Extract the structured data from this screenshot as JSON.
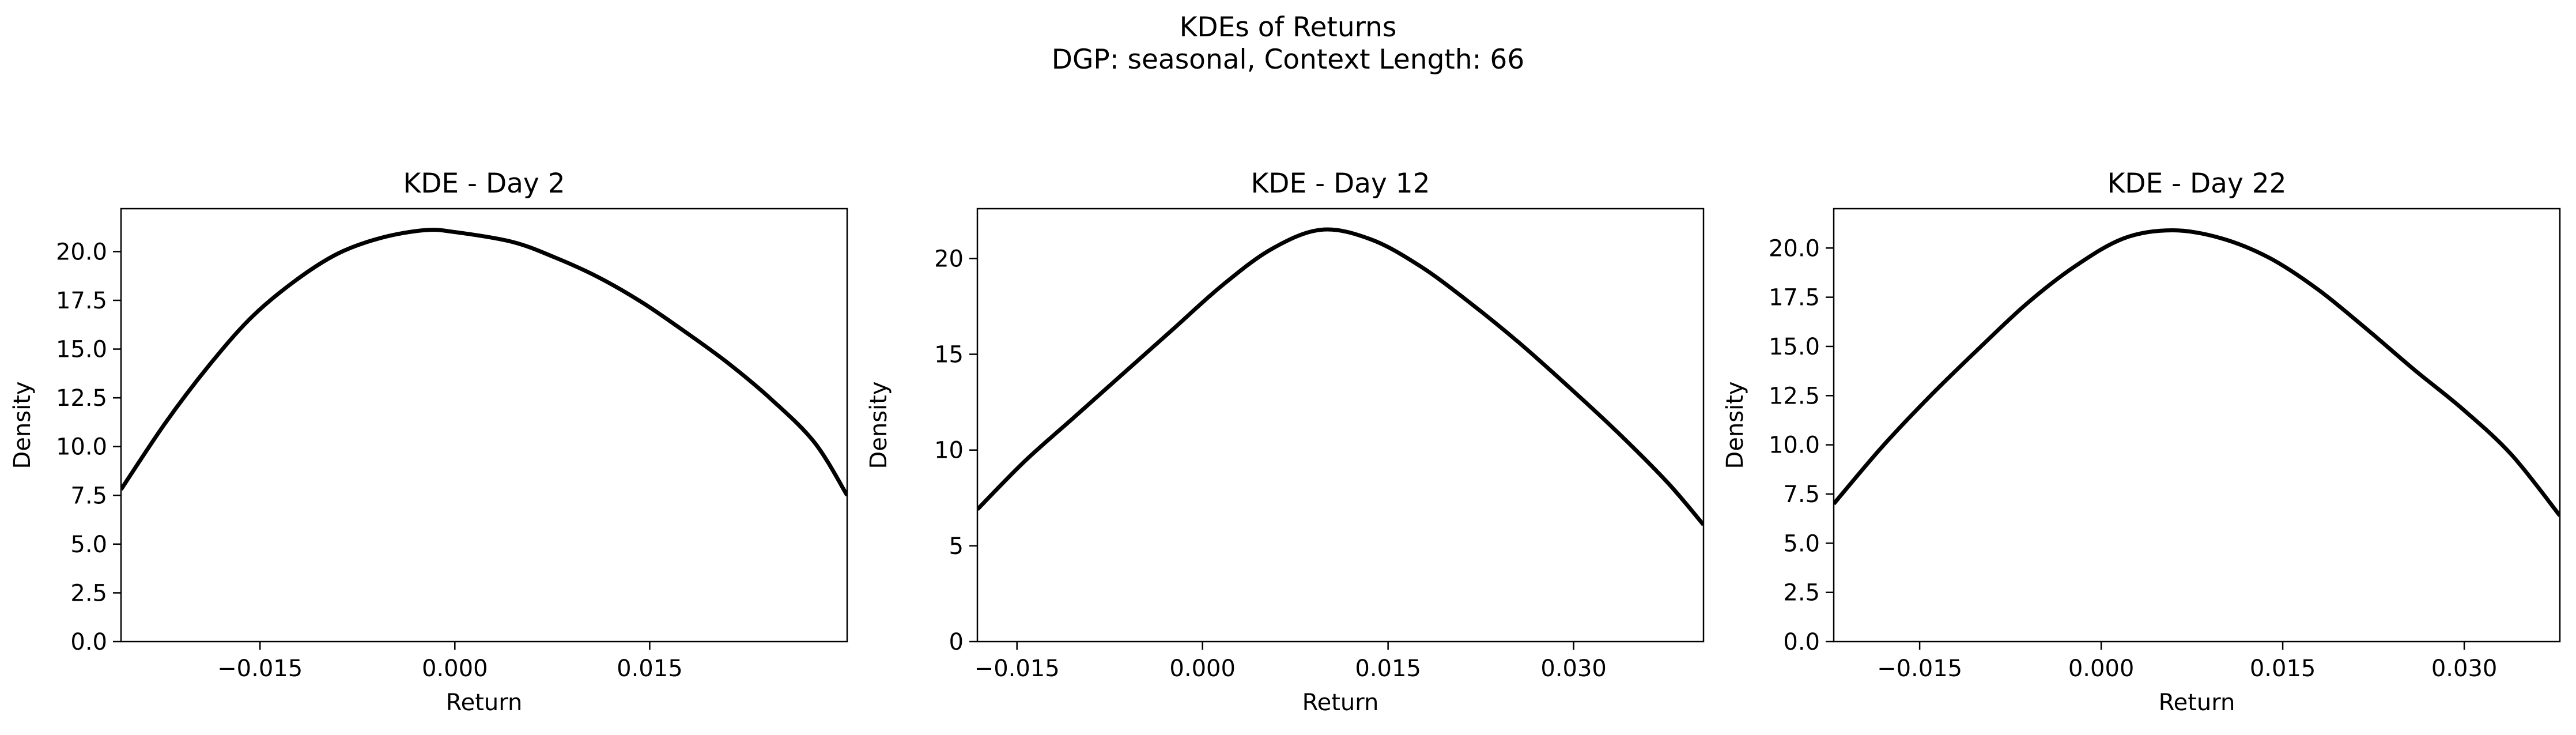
{
  "figure": {
    "title": "KDEs of Returns",
    "subtitle": "DGP: seasonal, Context Length: 66"
  },
  "chart_data": [
    {
      "type": "line",
      "title": "KDE - Day 2",
      "xlabel": "Return",
      "ylabel": "Density",
      "xlim": [
        -0.0257,
        0.0302
      ],
      "ylim": [
        0,
        22.2
      ],
      "xticks": [
        -0.015,
        0.0,
        0.015
      ],
      "xtick_labels": [
        "−0.015",
        "0.000",
        "0.015"
      ],
      "yticks": [
        0,
        2.5,
        5,
        7.5,
        10,
        12.5,
        15,
        17.5,
        20
      ],
      "ytick_labels": [
        "0.0",
        "2.5",
        "5.0",
        "7.5",
        "10.0",
        "12.5",
        "15.0",
        "17.5",
        "20.0"
      ],
      "grid": false,
      "color": "#000000",
      "x": [
        -0.0257,
        -0.0223,
        -0.019,
        -0.0157,
        -0.0123,
        -0.009,
        -0.0057,
        -0.0023,
        0.0,
        0.0044,
        0.0077,
        0.011,
        0.0144,
        0.0177,
        0.021,
        0.0244,
        0.0277,
        0.0302
      ],
      "y": [
        7.8,
        11.2,
        14.1,
        16.6,
        18.5,
        19.9,
        20.7,
        21.1,
        21.0,
        20.5,
        19.7,
        18.7,
        17.4,
        15.9,
        14.3,
        12.4,
        10.2,
        7.5
      ]
    },
    {
      "type": "line",
      "title": "KDE - Day 12",
      "xlabel": "Return",
      "ylabel": "Density",
      "xlim": [
        -0.0182,
        0.0405
      ],
      "ylim": [
        0,
        22.6
      ],
      "xticks": [
        -0.015,
        0.0,
        0.015,
        0.03
      ],
      "xtick_labels": [
        "−0.015",
        "0.000",
        "0.015",
        "0.030"
      ],
      "yticks": [
        0,
        5,
        10,
        15,
        20
      ],
      "ytick_labels": [
        "0",
        "5",
        "10",
        "15",
        "20"
      ],
      "grid": false,
      "color": "#000000",
      "x": [
        -0.0182,
        -0.0144,
        -0.0104,
        -0.0064,
        -0.0024,
        0.0016,
        0.0056,
        0.0096,
        0.0136,
        0.0176,
        0.0216,
        0.0256,
        0.0296,
        0.0336,
        0.0376,
        0.0405
      ],
      "y": [
        6.9,
        9.4,
        11.7,
        14.0,
        16.3,
        18.6,
        20.5,
        21.5,
        21.0,
        19.6,
        17.7,
        15.6,
        13.3,
        10.9,
        8.3,
        6.1
      ]
    },
    {
      "type": "line",
      "title": "KDE - Day 22",
      "xlabel": "Return",
      "ylabel": "Density",
      "xlim": [
        -0.0221,
        0.0379
      ],
      "ylim": [
        0,
        22.0
      ],
      "xticks": [
        -0.015,
        0.0,
        0.015,
        0.03
      ],
      "xtick_labels": [
        "−0.015",
        "0.000",
        "0.015",
        "0.030"
      ],
      "yticks": [
        0,
        2.5,
        5,
        7.5,
        10,
        12.5,
        15,
        17.5,
        20
      ],
      "ytick_labels": [
        "0.0",
        "2.5",
        "5.0",
        "7.5",
        "10.0",
        "12.5",
        "15.0",
        "17.5",
        "20.0"
      ],
      "grid": false,
      "color": "#000000",
      "x": [
        -0.0221,
        -0.0181,
        -0.0141,
        -0.0101,
        -0.0061,
        -0.0021,
        0.0019,
        0.0059,
        0.0099,
        0.0139,
        0.0179,
        0.0219,
        0.0259,
        0.0299,
        0.0339,
        0.0379
      ],
      "y": [
        7.0,
        9.9,
        12.5,
        14.9,
        17.2,
        19.1,
        20.5,
        20.9,
        20.5,
        19.5,
        17.9,
        15.9,
        13.8,
        11.8,
        9.5,
        6.4
      ]
    }
  ]
}
